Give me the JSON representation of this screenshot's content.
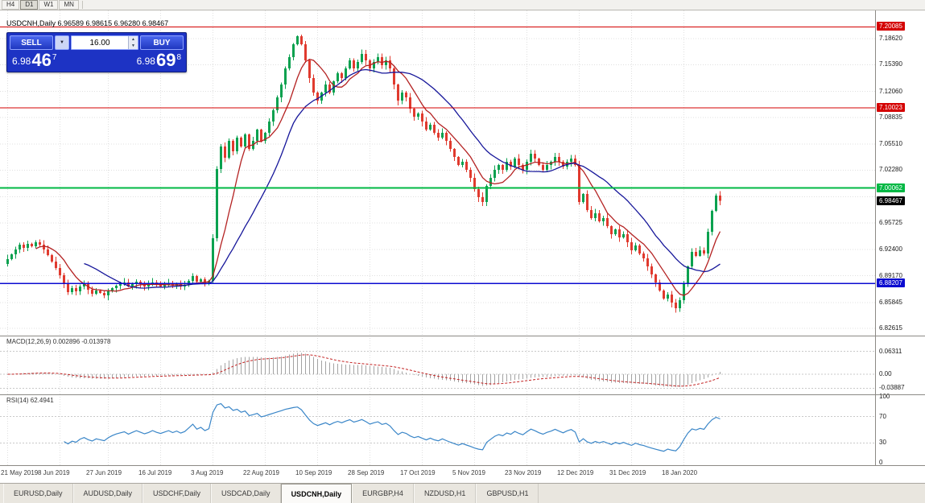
{
  "toolbar": {
    "periods": [
      "H4",
      "D1",
      "W1",
      "MN"
    ],
    "active_period": "D1"
  },
  "chart_header": {
    "symbol_line": "USDCNH,Daily 6.96589 6.98615 6.96280 6.98467"
  },
  "trade_panel": {
    "sell_label": "SELL",
    "buy_label": "BUY",
    "volume": "16.00",
    "bid": {
      "main": "6.98",
      "pips": "46",
      "sup": "7"
    },
    "ask": {
      "main": "6.98",
      "pips": "69",
      "sup": "8"
    }
  },
  "icons": {
    "dropdown": "▼",
    "spin_up": "▲",
    "spin_down": "▼"
  },
  "chart_data": {
    "type": "candlestick",
    "symbol": "USDCNH",
    "timeframe": "Daily",
    "ohlc_header": {
      "open": "6.96589",
      "high": "6.98615",
      "low": "6.96280",
      "close": "6.98467"
    },
    "colors": {
      "grid": "#e0e0e0",
      "candle_up": "#0aa14f",
      "candle_down": "#e03a2e",
      "ma_fast": "#b42222",
      "ma_slow": "#16169a",
      "macd_histogram": "#a3a3a3",
      "macd_signal": "#c32222",
      "rsi_line": "#3a86c8",
      "current_price_bg": "#000000"
    },
    "y_ticks": [
      {
        "label": "7.18620",
        "value": 7.1862
      },
      {
        "label": "7.15390",
        "value": 7.1539
      },
      {
        "label": "7.12060",
        "value": 7.1206
      },
      {
        "label": "7.08835",
        "value": 7.08835
      },
      {
        "label": "7.05510",
        "value": 7.0551
      },
      {
        "label": "7.02280",
        "value": 7.0228
      },
      {
        "label": "",
        "value": 6.98955
      },
      {
        "label": "6.95725",
        "value": 6.95725
      },
      {
        "label": "6.92400",
        "value": 6.924
      },
      {
        "label": "6.89170",
        "value": 6.8917
      },
      {
        "label": "6.85845",
        "value": 6.85845
      },
      {
        "label": "6.82615",
        "value": 6.82615
      }
    ],
    "hlines": [
      {
        "label": "7.20085",
        "value": 7.20085,
        "color": "#d40000",
        "width": 1.2
      },
      {
        "label": "7.10023",
        "value": 7.10023,
        "color": "#d40000",
        "width": 1.2
      },
      {
        "label": "7.00062",
        "value": 7.00062,
        "color": "#00b844",
        "width": 2
      },
      {
        "label": "6.88207",
        "value": 6.88207,
        "color": "#0b0bd0",
        "width": 1.5
      }
    ],
    "current_price": {
      "label": "6.98467",
      "value": 6.98467
    },
    "x_ticks": [
      {
        "label": "21 May 2019",
        "index": 0
      },
      {
        "label": "8 Jun 2019",
        "index": 13
      },
      {
        "label": "27 Jun 2019",
        "index": 25
      },
      {
        "label": "16 Jul 2019",
        "index": 38
      },
      {
        "label": "3 Aug 2019",
        "index": 51
      },
      {
        "label": "22 Aug 2019",
        "index": 64
      },
      {
        "label": "10 Sep 2019",
        "index": 77
      },
      {
        "label": "28 Sep 2019",
        "index": 90
      },
      {
        "label": "17 Oct 2019",
        "index": 103
      },
      {
        "label": "5 Nov 2019",
        "index": 116
      },
      {
        "label": "23 Nov 2019",
        "index": 129
      },
      {
        "label": "12 Dec 2019",
        "index": 142
      },
      {
        "label": "31 Dec 2019",
        "index": 155
      },
      {
        "label": "18 Jan 2020",
        "index": 168
      }
    ],
    "closes": [
      6.912,
      6.918,
      6.924,
      6.93,
      6.926,
      6.931,
      6.928,
      6.933,
      6.93,
      6.924,
      6.917,
      6.909,
      6.901,
      6.892,
      6.881,
      6.871,
      6.876,
      6.872,
      6.878,
      6.881,
      6.874,
      6.869,
      6.873,
      6.87,
      6.867,
      6.872,
      6.876,
      6.879,
      6.881,
      6.883,
      6.878,
      6.881,
      6.884,
      6.881,
      6.878,
      6.88,
      6.883,
      6.88,
      6.878,
      6.88,
      6.882,
      6.879,
      6.881,
      6.878,
      6.88,
      6.885,
      6.891,
      6.884,
      6.887,
      6.882,
      6.885,
      6.938,
      7.024,
      7.052,
      7.038,
      7.059,
      7.046,
      7.063,
      7.052,
      7.067,
      7.049,
      7.059,
      7.073,
      7.059,
      7.069,
      7.083,
      7.097,
      7.113,
      7.129,
      7.149,
      7.163,
      7.179,
      7.189,
      7.179,
      7.159,
      7.137,
      7.119,
      7.109,
      7.119,
      7.129,
      7.119,
      7.133,
      7.143,
      7.137,
      7.149,
      7.159,
      7.149,
      7.157,
      7.167,
      7.159,
      7.149,
      7.157,
      7.163,
      7.153,
      7.159,
      7.149,
      7.129,
      7.109,
      7.119,
      7.113,
      7.099,
      7.089,
      7.093,
      7.083,
      7.073,
      7.079,
      7.069,
      7.063,
      7.069,
      7.059,
      7.049,
      7.039,
      7.029,
      7.033,
      7.023,
      7.013,
      6.999,
      6.989,
      6.983,
      7.003,
      7.013,
      7.023,
      7.029,
      7.023,
      7.033,
      7.027,
      7.037,
      7.029,
      7.023,
      7.033,
      7.043,
      7.037,
      7.029,
      7.023,
      7.029,
      7.033,
      7.039,
      7.033,
      7.027,
      7.033,
      7.037,
      7.029,
      6.983,
      6.993,
      6.973,
      6.963,
      6.969,
      6.959,
      6.963,
      6.953,
      6.943,
      6.949,
      6.939,
      6.943,
      6.933,
      6.923,
      6.929,
      6.919,
      6.913,
      6.903,
      6.893,
      6.883,
      6.873,
      6.863,
      6.868,
      6.858,
      6.851,
      6.861,
      6.881,
      6.903,
      6.921,
      6.916,
      6.923,
      6.919,
      6.946,
      6.972,
      6.991,
      6.98467
    ],
    "indicators": {
      "macd": {
        "header": "MACD(12,26,9) 0.002896 -0.013978",
        "axis": [
          {
            "label": "0.06311",
            "value": 0.06311
          },
          {
            "label": "0.00",
            "value": 0
          },
          {
            "label": "-0.03887",
            "value": -0.03887
          }
        ]
      },
      "rsi": {
        "header": "RSI(14) 62.4941",
        "levels": [
          70,
          30
        ],
        "axis": [
          {
            "label": "100",
            "value": 100
          },
          {
            "label": "70",
            "value": 70
          },
          {
            "label": "30",
            "value": 30
          },
          {
            "label": "0",
            "value": 0
          }
        ]
      }
    }
  },
  "bottom_tabs": {
    "tabs": [
      {
        "label": "EURUSD,Daily",
        "active": false
      },
      {
        "label": "AUDUSD,Daily",
        "active": false
      },
      {
        "label": "USDCHF,Daily",
        "active": false
      },
      {
        "label": "USDCAD,Daily",
        "active": false
      },
      {
        "label": "USDCNH,Daily",
        "active": true
      },
      {
        "label": "EURGBP,H4",
        "active": false
      },
      {
        "label": "NZDUSD,H1",
        "active": false
      },
      {
        "label": "GBPUSD,H1",
        "active": false
      }
    ]
  }
}
